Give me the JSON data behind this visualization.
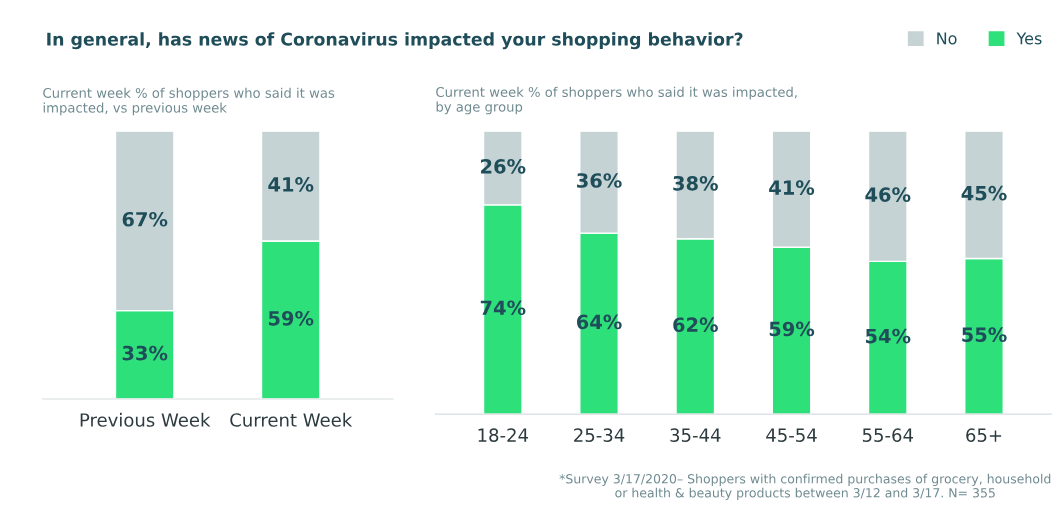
{
  "chart_data": [
    {
      "type": "bar",
      "title": "In general, has news of Coronavirus impacted your shopping behavior?",
      "subtitle": "Current week % of shoppers who said it was\nimpacted, vs previous week",
      "categories": [
        "Previous Week",
        "Current Week"
      ],
      "stacked": true,
      "series": [
        {
          "color": "#2ee07a",
          "values": [
            33,
            59
          ],
          "value_labels": [
            "33%",
            "59%"
          ]
        },
        {
          "color": "#c5d3d5",
          "values": [
            67,
            41
          ],
          "value_labels": [
            "67%",
            "41%"
          ]
        }
      ]
    },
    {
      "type": "bar",
      "subtitle": "Current week % of shoppers who said it was impacted,\nby age group",
      "categories": [
        "18-24",
        "25-34",
        "35-44",
        "45-54",
        "55-64",
        "65+"
      ],
      "stacked": true,
      "legend": "top right",
      "series": [
        {
          "name": "Yes",
          "color": "#2ee07a",
          "values": [
            74,
            64,
            62,
            59,
            54,
            55
          ],
          "value_labels": [
            "74%",
            "64%",
            "62%",
            "59%",
            "54%",
            "55%"
          ]
        },
        {
          "name": "No",
          "color": "#c5d3d5",
          "values": [
            26,
            36,
            38,
            41,
            46,
            45
          ],
          "value_labels": [
            "26%",
            "36%",
            "38%",
            "41%",
            "46%",
            "45%"
          ]
        }
      ],
      "annotations": [
        "*Survey 3/17/2020– Shoppers with confirmed purchases of grocery, household\nor health & beauty products between 3/12 and 3/17. N= 355"
      ]
    }
  ]
}
